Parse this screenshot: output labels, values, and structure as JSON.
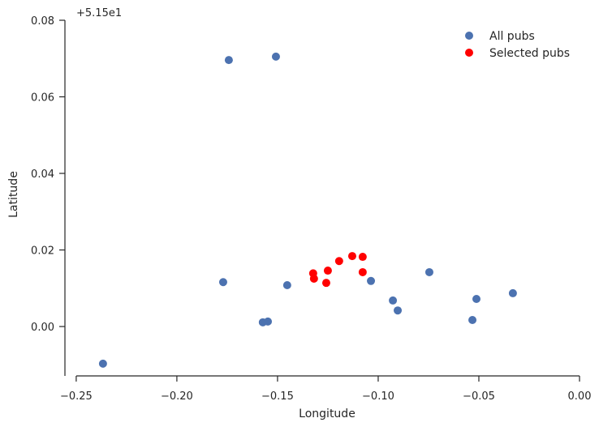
{
  "chart_data": {
    "type": "scatter",
    "title": "",
    "xlabel": "Longitude",
    "ylabel": "Latitude",
    "y_offset_text": "+5.15e1",
    "xlim": [
      -0.2556,
      0.0
    ],
    "ylim": [
      -0.0129,
      0.08
    ],
    "xticks": [
      -0.25,
      -0.2,
      -0.15,
      -0.1,
      -0.05,
      0.0
    ],
    "xtick_labels": [
      "−0.25",
      "−0.20",
      "−0.15",
      "−0.10",
      "−0.05",
      "0.00"
    ],
    "yticks": [
      0.0,
      0.02,
      0.04,
      0.06,
      0.08
    ],
    "ytick_labels": [
      "0.00",
      "0.02",
      "0.04",
      "0.06",
      "0.08"
    ],
    "grid": false,
    "legend_position": "top-right",
    "series": [
      {
        "name": "All pubs",
        "color": "#4c72b0",
        "points": [
          [
            -0.1742,
            0.0696
          ],
          [
            -0.1508,
            0.0705
          ],
          [
            -0.177,
            0.0116
          ],
          [
            -0.1452,
            0.0108
          ],
          [
            -0.1036,
            0.0119
          ],
          [
            -0.0746,
            0.0142
          ],
          [
            -0.0927,
            0.0068
          ],
          [
            -0.0903,
            0.0042
          ],
          [
            -0.0512,
            0.0072
          ],
          [
            -0.0331,
            0.0087
          ],
          [
            -0.0532,
            0.0017
          ],
          [
            -0.1573,
            0.0011
          ],
          [
            -0.1548,
            0.0013
          ],
          [
            -0.2367,
            -0.0097
          ]
        ]
      },
      {
        "name": "Selected pubs",
        "color": "#ff0000",
        "points": [
          [
            -0.1129,
            0.0184
          ],
          [
            -0.1077,
            0.0182
          ],
          [
            -0.1194,
            0.0171
          ],
          [
            -0.125,
            0.0146
          ],
          [
            -0.1323,
            0.0139
          ],
          [
            -0.1319,
            0.0125
          ],
          [
            -0.1258,
            0.0114
          ],
          [
            -0.1077,
            0.0142
          ]
        ]
      }
    ]
  }
}
